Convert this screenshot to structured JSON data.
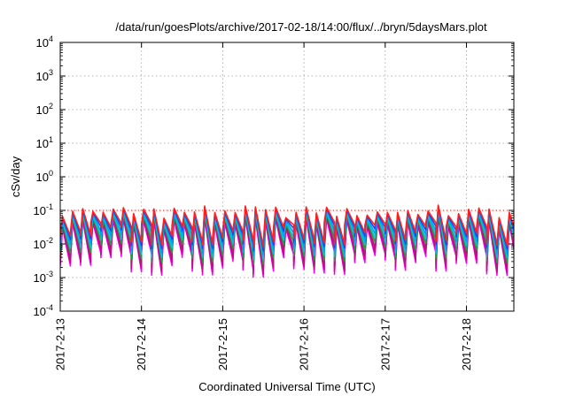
{
  "chart_data": {
    "type": "line",
    "title": "/data/run/goesPlots/archive/2017-02-18/14:00/flux/../bryn/5daysMars.plot",
    "xlabel": "Coordinated Universal Time (UTC)",
    "ylabel": "cSv/day",
    "yscale": "log",
    "ylim": [
      0.0001,
      10000
    ],
    "xlim": [
      "2017-02-13 00:00",
      "2017-02-18 14:00"
    ],
    "x_ticks": [
      "2017-2-13",
      "2017-2-14",
      "2017-2-15",
      "2017-2-16",
      "2017-2-17",
      "2017-2-18"
    ],
    "y_ticks": [
      {
        "base": "10",
        "exp": "-4"
      },
      {
        "base": "10",
        "exp": "-3"
      },
      {
        "base": "10",
        "exp": "-2"
      },
      {
        "base": "10",
        "exp": "-1"
      },
      {
        "base": "10",
        "exp": "0"
      },
      {
        "base": "10",
        "exp": "1"
      },
      {
        "base": "10",
        "exp": "2"
      },
      {
        "base": "10",
        "exp": "3"
      },
      {
        "base": "10",
        "exp": "4"
      }
    ],
    "grid": true,
    "legend": "none",
    "reference_level": 0.1,
    "cycle_hours": 3,
    "peak_range": [
      0.03,
      0.15
    ],
    "trough_range": [
      0.001,
      0.01
    ],
    "series": [
      {
        "color": "#ff00ff",
        "peak_factor": 0.28,
        "trough_factor": 0.9
      },
      {
        "color": "#d4009a",
        "peak_factor": 0.35,
        "trough_factor": 1.1
      },
      {
        "color": "#a6206c",
        "peak_factor": 0.45,
        "trough_factor": 1.5
      },
      {
        "color": "#20a040",
        "peak_factor": 0.55,
        "trough_factor": 2.2
      },
      {
        "color": "#00c8d8",
        "peak_factor": 0.65,
        "trough_factor": 3.0
      },
      {
        "color": "#00a0ff",
        "peak_factor": 0.8,
        "trough_factor": 4.0
      },
      {
        "color": "#2244e8",
        "peak_factor": 0.9,
        "trough_factor": 5.5
      },
      {
        "color": "#ff2020",
        "peak_factor": 1.0,
        "trough_factor": 7.0
      }
    ]
  }
}
